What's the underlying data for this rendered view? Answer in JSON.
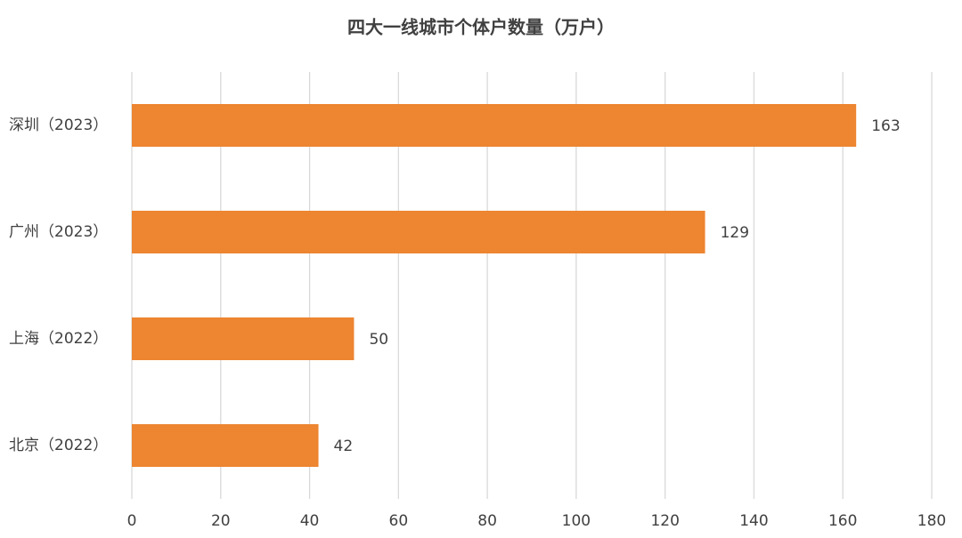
{
  "chart_data": {
    "type": "bar",
    "orientation": "horizontal",
    "title": "四大一线城市个体户数量（万户）",
    "categories": [
      "深圳（2023）",
      "广州（2023）",
      "上海（2022）",
      "北京（2022）"
    ],
    "values": [
      163,
      129,
      50,
      42
    ],
    "color": "#ed8531",
    "xlim": [
      0,
      180
    ],
    "xticks": [
      0,
      20,
      40,
      60,
      80,
      100,
      120,
      140,
      160,
      180
    ],
    "grid": true
  }
}
